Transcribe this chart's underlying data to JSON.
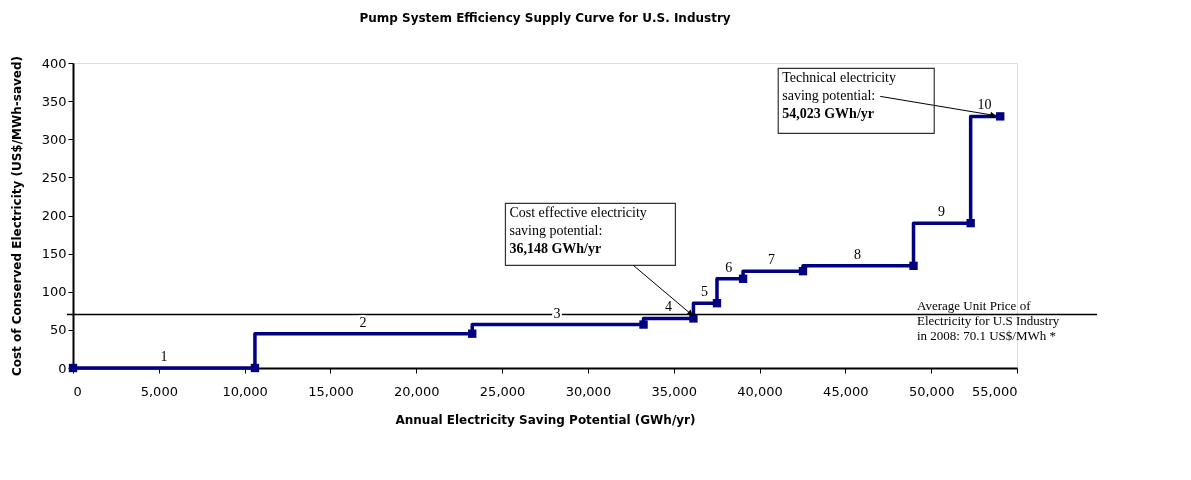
{
  "chart_data": {
    "type": "step",
    "title": "Pump System Efficiency Supply Curve for U.S. Industry",
    "xlabel": "Annual Electricity Saving Potential (GWh/yr)",
    "ylabel": "Cost of Conserved Electricity (US$/MWh-saved)",
    "x": [
      0,
      10600,
      23260,
      33240,
      36148,
      37520,
      39040,
      42530,
      48970,
      52300,
      54023
    ],
    "values": [
      0,
      0,
      45,
      57,
      65,
      85,
      117,
      127,
      134,
      190,
      330
    ],
    "color": "#000080",
    "marker": "square",
    "line_style": "solid",
    "grid": false,
    "xlim": [
      0,
      55000
    ],
    "xticks": [
      {
        "value": 0,
        "label": "0"
      },
      {
        "value": 5000,
        "label": "5,000"
      },
      {
        "value": 10000,
        "label": "10,000"
      },
      {
        "value": 15000,
        "label": "15,000"
      },
      {
        "value": 20000,
        "label": "20,000"
      },
      {
        "value": 25000,
        "label": "25,000"
      },
      {
        "value": 30000,
        "label": "30,000"
      },
      {
        "value": 35000,
        "label": "35,000"
      },
      {
        "value": 40000,
        "label": "40,000"
      },
      {
        "value": 45000,
        "label": "45,000"
      },
      {
        "value": 50000,
        "label": "50,000"
      },
      {
        "value": 55000,
        "label": "55,000"
      }
    ],
    "ylim": [
      0,
      400
    ],
    "yticks": [
      0,
      50,
      100,
      150,
      200,
      250,
      300,
      350,
      400
    ],
    "ref_lines": [
      {
        "axis": "y",
        "value": 70.1,
        "label": "Average Unit Price of\nElectricity for U.S Industry\nin 2008: 70.1 US$/MWh  *",
        "color": "#000000"
      }
    ],
    "annotations": [
      {
        "text": "1",
        "x": 5300,
        "y": 0
      },
      {
        "text": "2",
        "x": 16900,
        "y": 45
      },
      {
        "text": "3",
        "x": 28200,
        "y": 57
      },
      {
        "text": "4",
        "x": 34700,
        "y": 65
      },
      {
        "text": "5",
        "x": 36800,
        "y": 85
      },
      {
        "text": "6",
        "x": 38200,
        "y": 117
      },
      {
        "text": "7",
        "x": 40700,
        "y": 127
      },
      {
        "text": "8",
        "x": 45700,
        "y": 134
      },
      {
        "text": "9",
        "x": 50600,
        "y": 190
      },
      {
        "text": "10",
        "x": 53100,
        "y": 330
      },
      {
        "text": "Cost effective electricity\nsaving potential:\n36,148 GWh/yr",
        "x": 36148,
        "y": 65
      },
      {
        "text": "Technical electricity\nsaving potential:\n54,023 GWh/yr",
        "x": 54023,
        "y": 330
      }
    ]
  }
}
